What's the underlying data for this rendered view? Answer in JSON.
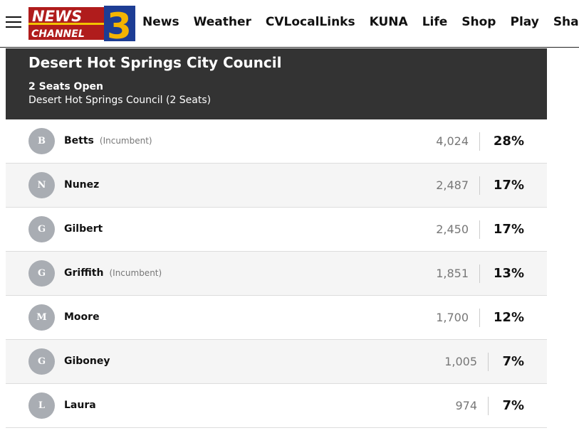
{
  "nav": {
    "logo_text": "NEWS CHANNEL 3",
    "items": [
      "News",
      "Weather",
      "CVLocalLinks",
      "KUNA",
      "Life",
      "Shop",
      "Play",
      "Share"
    ]
  },
  "race": {
    "title": "Desert Hot Springs City Council",
    "seats": "2 Seats Open",
    "subtitle": "Desert Hot Springs Council (2 Seats)"
  },
  "candidates": [
    {
      "initial": "B",
      "name": "Betts",
      "tag": "(Incumbent)",
      "votes": "4,024",
      "pct": "28%"
    },
    {
      "initial": "N",
      "name": "Nunez",
      "tag": "",
      "votes": "2,487",
      "pct": "17%"
    },
    {
      "initial": "G",
      "name": "Gilbert",
      "tag": "",
      "votes": "2,450",
      "pct": "17%"
    },
    {
      "initial": "G",
      "name": "Griffith",
      "tag": "(Incumbent)",
      "votes": "1,851",
      "pct": "13%"
    },
    {
      "initial": "M",
      "name": "Moore",
      "tag": "",
      "votes": "1,700",
      "pct": "12%"
    },
    {
      "initial": "G",
      "name": "Giboney",
      "tag": "",
      "votes": "1,005",
      "pct": "7%"
    },
    {
      "initial": "L",
      "name": "Laura",
      "tag": "",
      "votes": "974",
      "pct": "7%"
    }
  ]
}
